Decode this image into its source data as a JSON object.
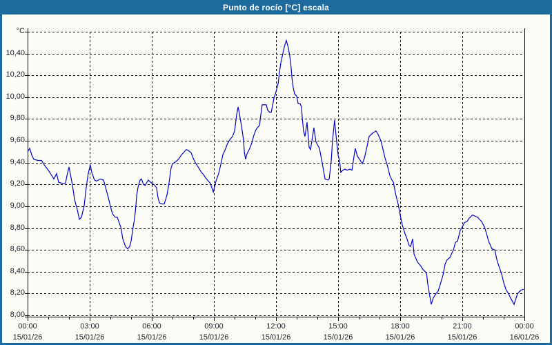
{
  "window": {
    "title": "Punto de rocío [°C] escala"
  },
  "colors": {
    "titlebar_bg": "#1c6a9e",
    "window_border": "#1c6a9e",
    "content_bg": "#fcfdf6",
    "series_line": "#0000c8",
    "gridline": "#000000",
    "axis_text": "#1a1a26",
    "title_text": "#ffffff"
  },
  "axes": {
    "unit_label": "°C",
    "y_labels": [
      {
        "label": "°C",
        "value": 10.6
      },
      {
        "label": "10,40",
        "value": 10.4
      },
      {
        "label": "10,20",
        "value": 10.2
      },
      {
        "label": "10,00",
        "value": 10.0
      },
      {
        "label": "9,80",
        "value": 9.8
      },
      {
        "label": "9,60",
        "value": 9.6
      },
      {
        "label": "9,40",
        "value": 9.4
      },
      {
        "label": "9,20",
        "value": 9.2
      },
      {
        "label": "9,00",
        "value": 9.0
      },
      {
        "label": "8,80",
        "value": 8.8
      },
      {
        "label": "8,60",
        "value": 8.6
      },
      {
        "label": "8,40",
        "value": 8.4
      },
      {
        "label": "8,20",
        "value": 8.2
      },
      {
        "label": "8,00",
        "value": 8.0
      }
    ],
    "x_labels": [
      {
        "time": "00:00",
        "date": "15/01/26",
        "hour": 0
      },
      {
        "time": "03:00",
        "date": "15/01/26",
        "hour": 3
      },
      {
        "time": "06:00",
        "date": "15/01/26",
        "hour": 6
      },
      {
        "time": "09:00",
        "date": "15/01/26",
        "hour": 9
      },
      {
        "time": "12:00",
        "date": "15/01/26",
        "hour": 12
      },
      {
        "time": "15:00",
        "date": "15/01/26",
        "hour": 15
      },
      {
        "time": "18:00",
        "date": "15/01/26",
        "hour": 18
      },
      {
        "time": "21:00",
        "date": "15/01/26",
        "hour": 21
      },
      {
        "time": "00:00",
        "date": "16/01/26",
        "hour": 24
      }
    ]
  },
  "chart_data": {
    "type": "line",
    "title": "Punto de rocío [°C] escala",
    "xlabel": "",
    "ylabel": "°C",
    "ylim": [
      8.0,
      10.6
    ],
    "y_grid_step": 0.2,
    "xlim_hours": [
      0,
      24
    ],
    "x_major_tick_hours": 3,
    "x_minor_tick_hours": 1,
    "grid": "dashed",
    "legend": "none",
    "series": [
      {
        "name": "Punto de rocío",
        "color": "#0000c8",
        "points": [
          [
            0,
            9.5
          ],
          [
            0.1,
            9.53
          ],
          [
            0.2,
            9.47
          ],
          [
            0.3,
            9.43
          ],
          [
            0.5,
            9.42
          ],
          [
            0.67,
            9.42
          ],
          [
            0.8,
            9.38
          ],
          [
            1,
            9.33
          ],
          [
            1.17,
            9.28
          ],
          [
            1.27,
            9.25
          ],
          [
            1.4,
            9.3
          ],
          [
            1.5,
            9.22
          ],
          [
            1.67,
            9.21
          ],
          [
            1.83,
            9.21
          ],
          [
            1.9,
            9.28
          ],
          [
            2,
            9.36
          ],
          [
            2.17,
            9.19
          ],
          [
            2.27,
            9.06
          ],
          [
            2.4,
            8.97
          ],
          [
            2.5,
            8.88
          ],
          [
            2.6,
            8.9
          ],
          [
            2.73,
            9
          ],
          [
            2.83,
            9.17
          ],
          [
            2.93,
            9.3
          ],
          [
            3.03,
            9.38
          ],
          [
            3.1,
            9.31
          ],
          [
            3.23,
            9.24
          ],
          [
            3.33,
            9.23
          ],
          [
            3.5,
            9.25
          ],
          [
            3.67,
            9.24
          ],
          [
            3.77,
            9.17
          ],
          [
            3.9,
            9.08
          ],
          [
            4,
            9
          ],
          [
            4.1,
            8.93
          ],
          [
            4.23,
            8.9
          ],
          [
            4.33,
            8.9
          ],
          [
            4.5,
            8.81
          ],
          [
            4.6,
            8.7
          ],
          [
            4.73,
            8.63
          ],
          [
            4.83,
            8.61
          ],
          [
            4.93,
            8.63
          ],
          [
            5,
            8.68
          ],
          [
            5.1,
            8.81
          ],
          [
            5.17,
            8.89
          ],
          [
            5.23,
            9
          ],
          [
            5.27,
            9.1
          ],
          [
            5.33,
            9.17
          ],
          [
            5.43,
            9.24
          ],
          [
            5.5,
            9.25
          ],
          [
            5.6,
            9.2
          ],
          [
            5.67,
            9.19
          ],
          [
            5.83,
            9.24
          ],
          [
            6,
            9.21
          ],
          [
            6.1,
            9.2
          ],
          [
            6.23,
            9.17
          ],
          [
            6.3,
            9.08
          ],
          [
            6.37,
            9.03
          ],
          [
            6.5,
            9.02
          ],
          [
            6.6,
            9.02
          ],
          [
            6.73,
            9.1
          ],
          [
            6.83,
            9.21
          ],
          [
            6.93,
            9.35
          ],
          [
            7,
            9.39
          ],
          [
            7.1,
            9.4
          ],
          [
            7.23,
            9.42
          ],
          [
            7.33,
            9.44
          ],
          [
            7.43,
            9.47
          ],
          [
            7.57,
            9.5
          ],
          [
            7.67,
            9.52
          ],
          [
            7.77,
            9.51
          ],
          [
            7.9,
            9.49
          ],
          [
            8,
            9.44
          ],
          [
            8.1,
            9.4
          ],
          [
            8.17,
            9.38
          ],
          [
            8.27,
            9.35
          ],
          [
            8.4,
            9.31
          ],
          [
            8.5,
            9.29
          ],
          [
            8.6,
            9.26
          ],
          [
            8.73,
            9.23
          ],
          [
            8.83,
            9.21
          ],
          [
            8.9,
            9.17
          ],
          [
            8.97,
            9.13
          ],
          [
            9.1,
            9.23
          ],
          [
            9.23,
            9.3
          ],
          [
            9.33,
            9.38
          ],
          [
            9.43,
            9.47
          ],
          [
            9.57,
            9.53
          ],
          [
            9.67,
            9.58
          ],
          [
            9.77,
            9.61
          ],
          [
            9.9,
            9.64
          ],
          [
            10,
            9.69
          ],
          [
            10.1,
            9.84
          ],
          [
            10.17,
            9.91
          ],
          [
            10.23,
            9.85
          ],
          [
            10.33,
            9.74
          ],
          [
            10.43,
            9.61
          ],
          [
            10.47,
            9.5
          ],
          [
            10.53,
            9.43
          ],
          [
            10.6,
            9.48
          ],
          [
            10.73,
            9.53
          ],
          [
            10.83,
            9.58
          ],
          [
            10.93,
            9.65
          ],
          [
            11.03,
            9.7
          ],
          [
            11.1,
            9.72
          ],
          [
            11.2,
            9.74
          ],
          [
            11.33,
            9.93
          ],
          [
            11.43,
            9.93
          ],
          [
            11.53,
            9.93
          ],
          [
            11.6,
            9.88
          ],
          [
            11.7,
            9.86
          ],
          [
            11.77,
            9.86
          ],
          [
            11.9,
            9.99
          ],
          [
            11.97,
            10.03
          ],
          [
            12.1,
            10.12
          ],
          [
            12.17,
            10.23
          ],
          [
            12.23,
            10.31
          ],
          [
            12.33,
            10.4
          ],
          [
            12.4,
            10.46
          ],
          [
            12.5,
            10.52
          ],
          [
            12.6,
            10.45
          ],
          [
            12.67,
            10.37
          ],
          [
            12.73,
            10.27
          ],
          [
            12.77,
            10.18
          ],
          [
            12.83,
            10.09
          ],
          [
            12.9,
            10.03
          ],
          [
            13,
            10.01
          ],
          [
            13.07,
            9.94
          ],
          [
            13.17,
            9.94
          ],
          [
            13.23,
            9.91
          ],
          [
            13.27,
            9.81
          ],
          [
            13.33,
            9.69
          ],
          [
            13.4,
            9.64
          ],
          [
            13.5,
            9.77
          ],
          [
            13.6,
            9.54
          ],
          [
            13.67,
            9.52
          ],
          [
            13.83,
            9.72
          ],
          [
            13.93,
            9.59
          ],
          [
            14.1,
            9.53
          ],
          [
            14.23,
            9.4
          ],
          [
            14.37,
            9.25
          ],
          [
            14.5,
            9.24
          ],
          [
            14.57,
            9.25
          ],
          [
            14.67,
            9.42
          ],
          [
            14.73,
            9.6
          ],
          [
            14.83,
            9.79
          ],
          [
            14.9,
            9.65
          ],
          [
            15,
            9.47
          ],
          [
            15.07,
            9.42
          ],
          [
            15.13,
            9.31
          ],
          [
            15.23,
            9.33
          ],
          [
            15.33,
            9.34
          ],
          [
            15.43,
            9.33
          ],
          [
            15.57,
            9.34
          ],
          [
            15.67,
            9.33
          ],
          [
            15.77,
            9.46
          ],
          [
            15.83,
            9.53
          ],
          [
            15.93,
            9.46
          ],
          [
            16.07,
            9.42
          ],
          [
            16.17,
            9.39
          ],
          [
            16.27,
            9.44
          ],
          [
            16.4,
            9.55
          ],
          [
            16.5,
            9.64
          ],
          [
            16.67,
            9.67
          ],
          [
            16.83,
            9.69
          ],
          [
            16.93,
            9.66
          ],
          [
            17.07,
            9.6
          ],
          [
            17.17,
            9.52
          ],
          [
            17.27,
            9.44
          ],
          [
            17.4,
            9.36
          ],
          [
            17.5,
            9.28
          ],
          [
            17.6,
            9.24
          ],
          [
            17.67,
            9.22
          ],
          [
            17.77,
            9.12
          ],
          [
            17.9,
            9.02
          ],
          [
            18,
            8.92
          ],
          [
            18.1,
            8.83
          ],
          [
            18.23,
            8.75
          ],
          [
            18.33,
            8.7
          ],
          [
            18.43,
            8.64
          ],
          [
            18.5,
            8.63
          ],
          [
            18.6,
            8.7
          ],
          [
            18.67,
            8.56
          ],
          [
            18.83,
            8.49
          ],
          [
            19,
            8.45
          ],
          [
            19.1,
            8.42
          ],
          [
            19.27,
            8.39
          ],
          [
            19.33,
            8.29
          ],
          [
            19.4,
            8.21
          ],
          [
            19.5,
            8.1
          ],
          [
            19.6,
            8.16
          ],
          [
            19.73,
            8.2
          ],
          [
            19.83,
            8.22
          ],
          [
            19.93,
            8.28
          ],
          [
            20.07,
            8.37
          ],
          [
            20.17,
            8.47
          ],
          [
            20.27,
            8.51
          ],
          [
            20.4,
            8.53
          ],
          [
            20.57,
            8.6
          ],
          [
            20.67,
            8.67
          ],
          [
            20.77,
            8.68
          ],
          [
            20.9,
            8.78
          ],
          [
            21,
            8.81
          ],
          [
            21.1,
            8.85
          ],
          [
            21.23,
            8.86
          ],
          [
            21.33,
            8.89
          ],
          [
            21.5,
            8.92
          ],
          [
            21.6,
            8.91
          ],
          [
            21.73,
            8.9
          ],
          [
            21.83,
            8.88
          ],
          [
            21.93,
            8.86
          ],
          [
            22.07,
            8.81
          ],
          [
            22.17,
            8.75
          ],
          [
            22.27,
            8.68
          ],
          [
            22.43,
            8.61
          ],
          [
            22.57,
            8.6
          ],
          [
            22.67,
            8.51
          ],
          [
            22.77,
            8.45
          ],
          [
            22.9,
            8.38
          ],
          [
            23,
            8.3
          ],
          [
            23.1,
            8.24
          ],
          [
            23.23,
            8.2
          ],
          [
            23.33,
            8.16
          ],
          [
            23.5,
            8.1
          ],
          [
            23.67,
            8.2
          ],
          [
            23.83,
            8.23
          ],
          [
            23.97,
            8.24
          ]
        ]
      }
    ]
  }
}
